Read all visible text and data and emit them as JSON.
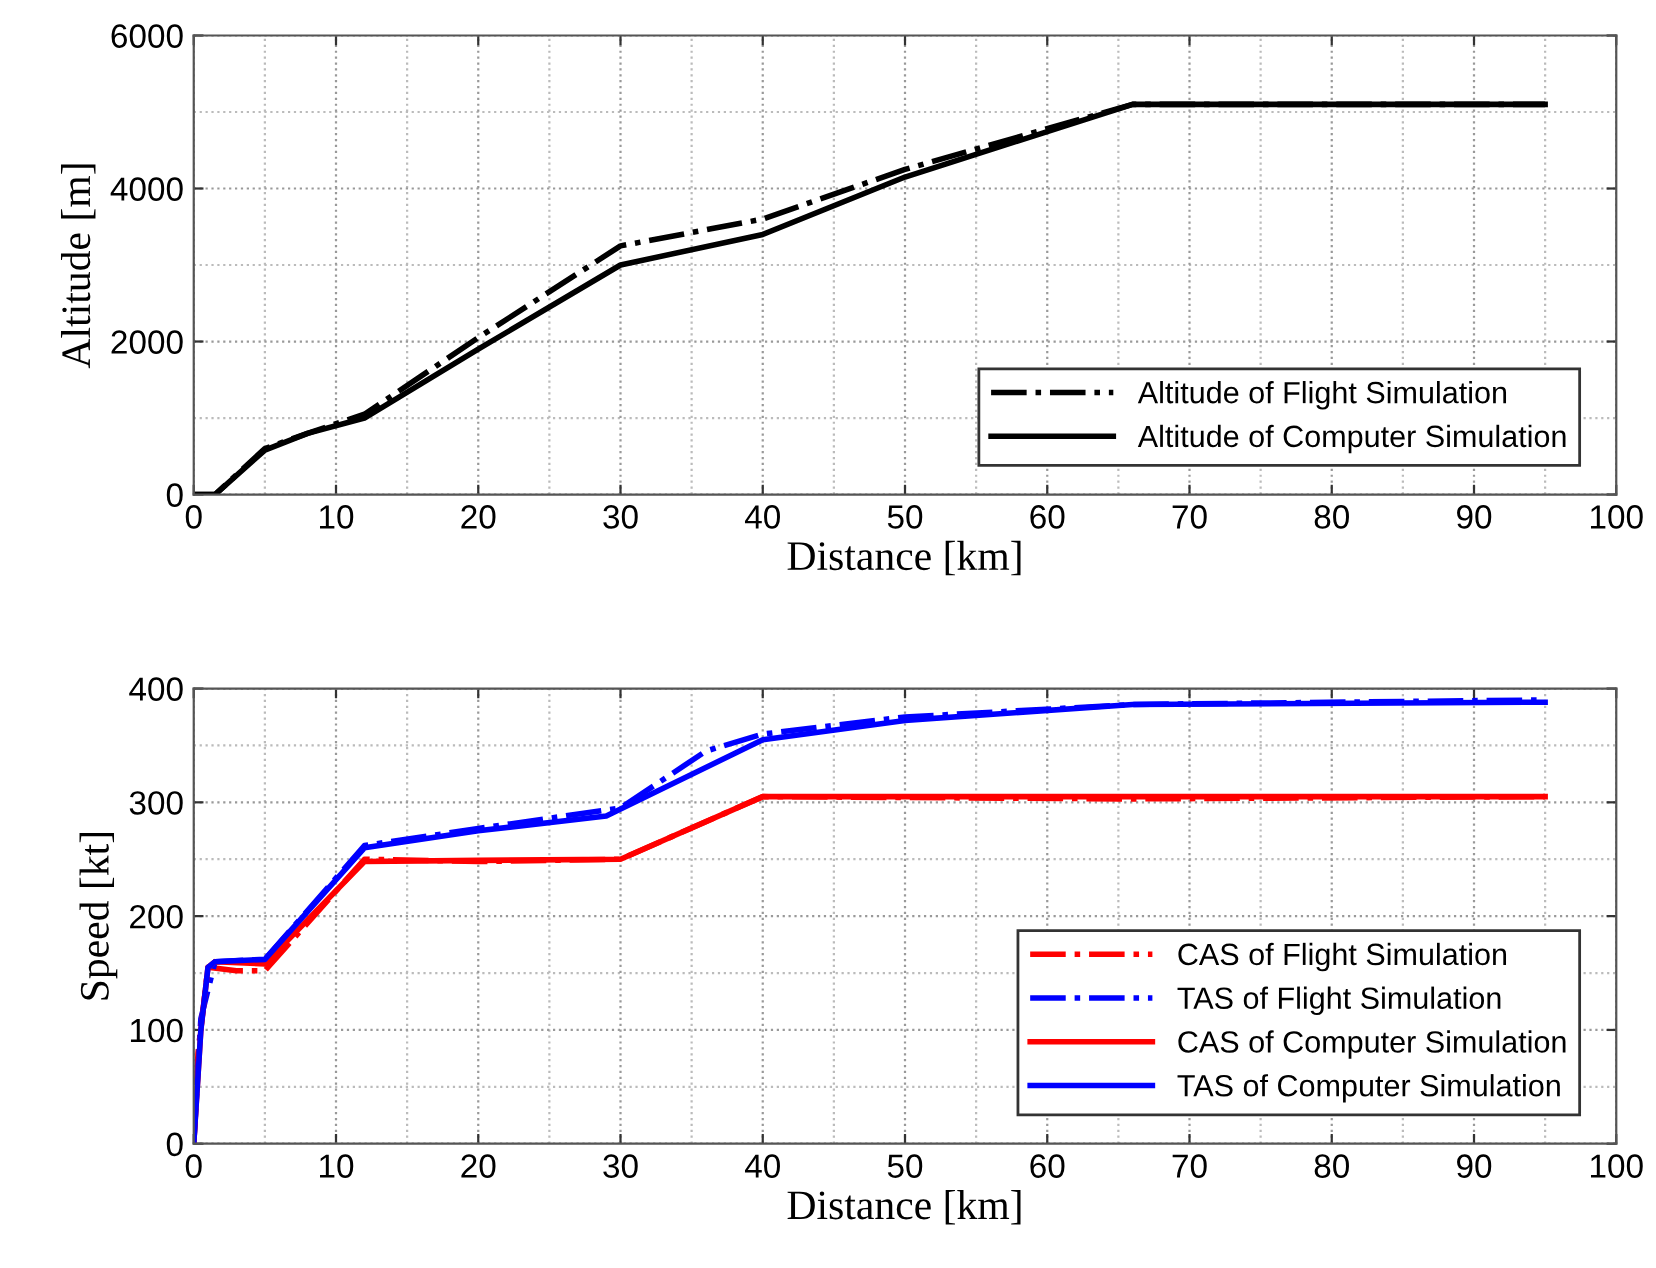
{
  "chart_data": [
    {
      "type": "line",
      "xlabel": "Distance [km]",
      "ylabel": "Altitude [m]",
      "xlim": [
        0,
        100
      ],
      "ylim": [
        0,
        6000
      ],
      "xticks": [
        0,
        10,
        20,
        30,
        40,
        50,
        60,
        70,
        80,
        90,
        100
      ],
      "yticks": [
        0,
        2000,
        4000,
        6000
      ],
      "grid": true,
      "legend": "bottom right",
      "marker": "none",
      "series": [
        {
          "name": "Altitude of Flight Simulation",
          "color": "#000000",
          "line_style": "dashdot",
          "x": [
            0,
            1.5,
            5,
            8,
            12,
            20,
            30,
            40,
            50,
            66,
            95
          ],
          "values": [
            0,
            0,
            600,
            800,
            1050,
            2050,
            3250,
            3600,
            4250,
            5100,
            5100
          ]
        },
        {
          "name": "Altitude of Computer Simulation",
          "color": "#000000",
          "line_style": "solid",
          "x": [
            0,
            1.5,
            5,
            8,
            12,
            20,
            30,
            40,
            50,
            66,
            95
          ],
          "values": [
            0,
            0,
            580,
            800,
            1000,
            1900,
            3000,
            3400,
            4150,
            5100,
            5100
          ]
        }
      ]
    },
    {
      "type": "line",
      "xlabel": "Distance [km]",
      "ylabel": "Speed [kt]",
      "xlim": [
        0,
        100
      ],
      "ylim": [
        0,
        400
      ],
      "xticks": [
        0,
        10,
        20,
        30,
        40,
        50,
        60,
        70,
        80,
        90,
        100
      ],
      "yticks": [
        0,
        100,
        200,
        300,
        400
      ],
      "grid": true,
      "legend": "bottom right",
      "marker": "none",
      "series": [
        {
          "name": "CAS of Flight Simulation",
          "color": "#ff0000",
          "line_style": "dashdot",
          "x": [
            0,
            0.3,
            1,
            3,
            5,
            12,
            20,
            30,
            40,
            66,
            95
          ],
          "values": [
            0,
            80,
            155,
            152,
            152,
            250,
            248,
            250,
            305,
            303,
            305
          ]
        },
        {
          "name": "TAS of Flight Simulation",
          "color": "#0000ff",
          "line_style": "dashdot",
          "x": [
            0,
            0.5,
            1.5,
            5,
            12,
            20,
            30,
            36,
            40,
            50,
            66,
            95
          ],
          "values": [
            0,
            110,
            160,
            162,
            262,
            277,
            295,
            345,
            360,
            375,
            386,
            390
          ]
        },
        {
          "name": "CAS of Computer Simulation",
          "color": "#ff0000",
          "line_style": "solid",
          "x": [
            0,
            0.5,
            1,
            1.5,
            5,
            12,
            20,
            30,
            40,
            66,
            95
          ],
          "values": [
            0,
            100,
            155,
            160,
            158,
            248,
            249,
            250,
            305,
            305,
            305
          ]
        },
        {
          "name": "TAS of Computer Simulation",
          "color": "#0000ff",
          "line_style": "solid",
          "x": [
            0,
            0.5,
            1,
            1.5,
            5,
            12,
            20,
            29,
            40,
            50,
            66,
            95
          ],
          "values": [
            0,
            100,
            155,
            160,
            162,
            260,
            275,
            288,
            355,
            372,
            386,
            388
          ]
        }
      ]
    }
  ]
}
